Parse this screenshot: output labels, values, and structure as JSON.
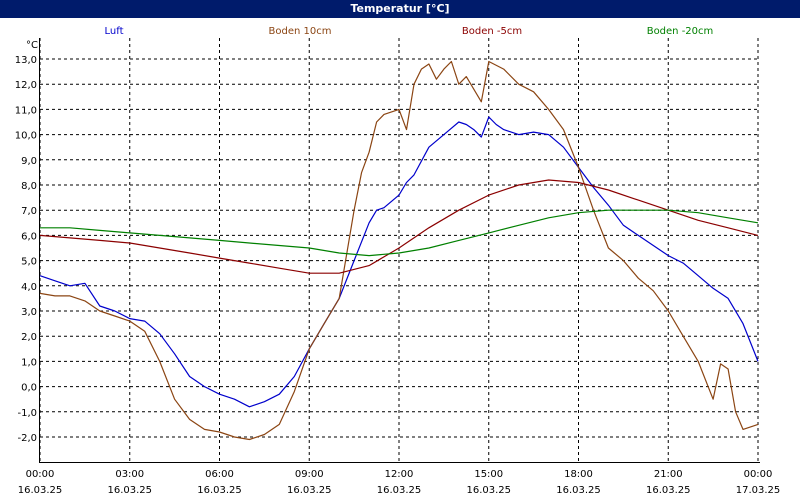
{
  "title": "Temperatur [°C]",
  "chart_data": {
    "type": "line",
    "unit": "°C",
    "ylim": [
      -2.0,
      13.0
    ],
    "yticks": [
      "13,0",
      "12,0",
      "11,0",
      "10,0",
      "9,0",
      "8,0",
      "7,0",
      "6,0",
      "5,0",
      "4,0",
      "3,0",
      "2,0",
      "1,0",
      "0,0",
      "-1,0",
      "-2,0"
    ],
    "xticks": [
      {
        "time": "00:00",
        "date": "16.03.25"
      },
      {
        "time": "03:00",
        "date": "16.03.25"
      },
      {
        "time": "06:00",
        "date": "16.03.25"
      },
      {
        "time": "09:00",
        "date": "16.03.25"
      },
      {
        "time": "12:00",
        "date": "16.03.25"
      },
      {
        "time": "15:00",
        "date": "16.03.25"
      },
      {
        "time": "18:00",
        "date": "16.03.25"
      },
      {
        "time": "21:00",
        "date": "16.03.25"
      },
      {
        "time": "00:00",
        "date": "17.03.25"
      }
    ],
    "xlim_hours": [
      0,
      24
    ],
    "grid": true,
    "legend": "top",
    "series": [
      {
        "name": "Luft",
        "color": "#0000cc",
        "x": [
          0,
          0.5,
          1,
          1.5,
          2,
          2.5,
          3,
          3.5,
          4,
          4.5,
          5,
          5.5,
          6,
          6.5,
          7,
          7.5,
          8,
          8.5,
          9,
          9.5,
          10,
          10.5,
          11,
          11.25,
          11.5,
          12,
          12.25,
          12.5,
          13,
          13.5,
          14,
          14.25,
          14.5,
          14.75,
          15,
          15.25,
          15.5,
          16,
          16.5,
          17,
          17.5,
          18,
          18.5,
          19,
          19.5,
          20,
          20.5,
          21,
          21.5,
          22,
          22.5,
          23,
          23.5,
          24
        ],
        "y": [
          4.4,
          4.2,
          4.0,
          4.1,
          3.2,
          3.0,
          2.7,
          2.6,
          2.1,
          1.3,
          0.4,
          0.0,
          -0.3,
          -0.5,
          -0.8,
          -0.6,
          -0.3,
          0.4,
          1.5,
          2.5,
          3.5,
          5.0,
          6.5,
          7.0,
          7.1,
          7.6,
          8.1,
          8.4,
          9.5,
          10.0,
          10.5,
          10.4,
          10.2,
          9.9,
          10.7,
          10.4,
          10.2,
          10.0,
          10.1,
          10.0,
          9.5,
          8.7,
          7.9,
          7.2,
          6.4,
          6.0,
          5.6,
          5.2,
          4.9,
          4.4,
          3.9,
          3.5,
          2.5,
          1.0
        ]
      },
      {
        "name": "Boden 10cm",
        "color": "#8b4513",
        "x": [
          0,
          0.5,
          1,
          1.5,
          2,
          2.5,
          3,
          3.5,
          4,
          4.5,
          5,
          5.5,
          6,
          6.5,
          7,
          7.5,
          8,
          8.5,
          9,
          9.5,
          10,
          10.5,
          10.75,
          11,
          11.25,
          11.5,
          11.75,
          12,
          12.25,
          12.5,
          12.75,
          13,
          13.25,
          13.5,
          13.75,
          14,
          14.25,
          14.5,
          14.75,
          15,
          15.5,
          16,
          16.5,
          17,
          17.5,
          18,
          18.5,
          19,
          19.5,
          20,
          20.5,
          21,
          21.5,
          22,
          22.5,
          22.75,
          23,
          23.25,
          23.5,
          24
        ],
        "y": [
          3.7,
          3.6,
          3.6,
          3.4,
          3.0,
          2.8,
          2.6,
          2.2,
          1.0,
          -0.5,
          -1.3,
          -1.7,
          -1.8,
          -2.0,
          -2.1,
          -1.9,
          -1.5,
          -0.2,
          1.5,
          2.5,
          3.5,
          7.0,
          8.5,
          9.3,
          10.5,
          10.8,
          10.9,
          11.0,
          10.2,
          12.0,
          12.6,
          12.8,
          12.2,
          12.6,
          12.9,
          12.0,
          12.3,
          11.8,
          11.3,
          12.9,
          12.6,
          12.0,
          11.7,
          11.0,
          10.2,
          8.7,
          7.0,
          5.5,
          5.0,
          4.3,
          3.8,
          3.0,
          2.0,
          1.0,
          -0.5,
          0.9,
          0.7,
          -1.0,
          -1.7,
          -1.5
        ]
      },
      {
        "name": "Boden -5cm",
        "color": "#8b0000",
        "x": [
          0,
          1,
          2,
          3,
          4,
          5,
          6,
          7,
          8,
          9,
          10,
          11,
          12,
          13,
          14,
          15,
          16,
          17,
          18,
          19,
          20,
          21,
          22,
          23,
          24
        ],
        "y": [
          6.0,
          5.9,
          5.8,
          5.7,
          5.5,
          5.3,
          5.1,
          4.9,
          4.7,
          4.5,
          4.5,
          4.8,
          5.5,
          6.3,
          7.0,
          7.6,
          8.0,
          8.2,
          8.1,
          7.8,
          7.4,
          7.0,
          6.6,
          6.3,
          6.0
        ]
      },
      {
        "name": "Boden -20cm",
        "color": "#008000",
        "x": [
          0,
          1,
          2,
          3,
          4,
          5,
          6,
          7,
          8,
          9,
          10,
          11,
          12,
          13,
          14,
          15,
          16,
          17,
          18,
          19,
          20,
          21,
          22,
          23,
          24
        ],
        "y": [
          6.3,
          6.3,
          6.2,
          6.1,
          6.0,
          5.9,
          5.8,
          5.7,
          5.6,
          5.5,
          5.3,
          5.2,
          5.3,
          5.5,
          5.8,
          6.1,
          6.4,
          6.7,
          6.9,
          7.0,
          7.0,
          7.0,
          6.9,
          6.7,
          6.5
        ]
      }
    ]
  }
}
